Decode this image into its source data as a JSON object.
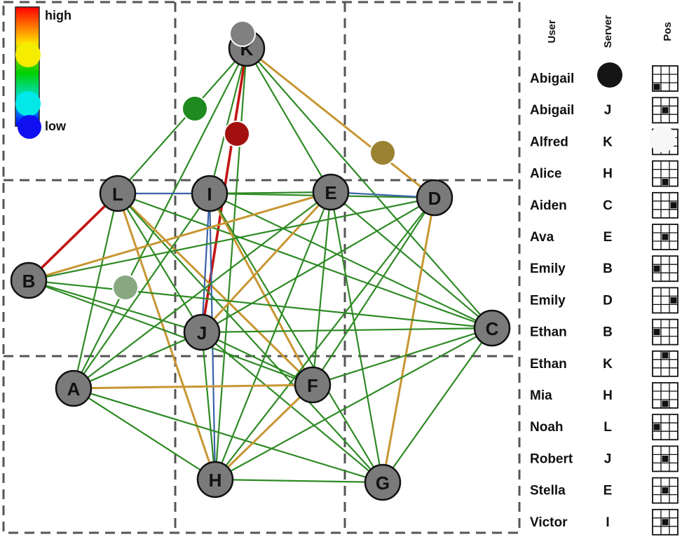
{
  "legend": {
    "high_label": "high",
    "low_label": "low"
  },
  "table_headers": {
    "user": "User",
    "server": "Server",
    "pos": "Pos"
  },
  "nodes": [
    {
      "id": "K",
      "label": "K"
    },
    {
      "id": "L",
      "label": "L"
    },
    {
      "id": "I",
      "label": "I"
    },
    {
      "id": "E",
      "label": "E"
    },
    {
      "id": "D",
      "label": "D"
    },
    {
      "id": "B",
      "label": "B"
    },
    {
      "id": "J",
      "label": "J"
    },
    {
      "id": "C",
      "label": "C"
    },
    {
      "id": "A",
      "label": "A"
    },
    {
      "id": "F",
      "label": "F"
    },
    {
      "id": "H",
      "label": "H"
    },
    {
      "id": "G",
      "label": "G"
    }
  ],
  "edges": [
    {
      "a": "K",
      "b": "L",
      "color": "green"
    },
    {
      "a": "K",
      "b": "I",
      "color": "green"
    },
    {
      "a": "K",
      "b": "E",
      "color": "green"
    },
    {
      "a": "K",
      "b": "D",
      "color": "orange"
    },
    {
      "a": "K",
      "b": "J",
      "color": "red"
    },
    {
      "a": "K",
      "b": "C",
      "color": "green"
    },
    {
      "a": "K",
      "b": "A",
      "color": "green"
    },
    {
      "a": "K",
      "b": "H",
      "color": "green"
    },
    {
      "a": "L",
      "b": "I",
      "color": "blue"
    },
    {
      "a": "L",
      "b": "B",
      "color": "red"
    },
    {
      "a": "L",
      "b": "A",
      "color": "green"
    },
    {
      "a": "L",
      "b": "J",
      "color": "green"
    },
    {
      "a": "L",
      "b": "F",
      "color": "orange"
    },
    {
      "a": "L",
      "b": "H",
      "color": "orange"
    },
    {
      "a": "L",
      "b": "G",
      "color": "green"
    },
    {
      "a": "L",
      "b": "C",
      "color": "green"
    },
    {
      "a": "I",
      "b": "E",
      "color": "green"
    },
    {
      "a": "I",
      "b": "D",
      "color": "green"
    },
    {
      "a": "I",
      "b": "J",
      "color": "blue"
    },
    {
      "a": "I",
      "b": "H",
      "color": "blue"
    },
    {
      "a": "I",
      "b": "F",
      "color": "orange"
    },
    {
      "a": "I",
      "b": "A",
      "color": "green"
    },
    {
      "a": "I",
      "b": "G",
      "color": "green"
    },
    {
      "a": "I",
      "b": "C",
      "color": "green"
    },
    {
      "a": "E",
      "b": "D",
      "color": "blue"
    },
    {
      "a": "E",
      "b": "B",
      "color": "orange"
    },
    {
      "a": "E",
      "b": "J",
      "color": "orange"
    },
    {
      "a": "E",
      "b": "F",
      "color": "green"
    },
    {
      "a": "E",
      "b": "H",
      "color": "green"
    },
    {
      "a": "E",
      "b": "G",
      "color": "green"
    },
    {
      "a": "E",
      "b": "C",
      "color": "green"
    },
    {
      "a": "E",
      "b": "A",
      "color": "green"
    },
    {
      "a": "D",
      "b": "J",
      "color": "green"
    },
    {
      "a": "D",
      "b": "F",
      "color": "green"
    },
    {
      "a": "D",
      "b": "G",
      "color": "orange"
    },
    {
      "a": "D",
      "b": "H",
      "color": "green"
    },
    {
      "a": "D",
      "b": "B",
      "color": "green"
    },
    {
      "a": "B",
      "b": "J",
      "color": "green"
    },
    {
      "a": "B",
      "b": "F",
      "color": "green"
    },
    {
      "a": "B",
      "b": "C",
      "color": "green"
    },
    {
      "a": "J",
      "b": "C",
      "color": "green"
    },
    {
      "a": "J",
      "b": "F",
      "color": "green"
    },
    {
      "a": "J",
      "b": "G",
      "color": "green"
    },
    {
      "a": "J",
      "b": "H",
      "color": "green"
    },
    {
      "a": "J",
      "b": "A",
      "color": "green"
    },
    {
      "a": "A",
      "b": "F",
      "color": "orange"
    },
    {
      "a": "A",
      "b": "H",
      "color": "green"
    },
    {
      "a": "A",
      "b": "G",
      "color": "green"
    },
    {
      "a": "F",
      "b": "H",
      "color": "orange"
    },
    {
      "a": "F",
      "b": "C",
      "color": "green"
    },
    {
      "a": "H",
      "b": "G",
      "color": "green"
    },
    {
      "a": "H",
      "b": "C",
      "color": "green"
    },
    {
      "a": "G",
      "b": "C",
      "color": "green"
    }
  ],
  "markers": [
    {
      "color": "#808080",
      "on": "K"
    },
    {
      "color": "#1f8a1f"
    },
    {
      "color": "#a31010"
    },
    {
      "color": "#9a8232"
    },
    {
      "color": "#88a882"
    }
  ],
  "colors": {
    "green": "#2e8a24",
    "orange": "#c89632",
    "red": "#c41414",
    "blue": "#3a62a8",
    "node_fill": "#7a7a7a",
    "legend_yellow": "#f5ec00",
    "legend_cyan": "#00e8e8",
    "legend_blue": "#1010f0",
    "server_black": "#151515",
    "server_white": "#f7f7f7"
  },
  "users": [
    {
      "user": "Abigail",
      "server": "",
      "server_icon": "black-dot",
      "pos": 6
    },
    {
      "user": "Abigail",
      "server": "J",
      "pos": 4
    },
    {
      "user": "Alfred",
      "server": "K",
      "server_icon": "white-dot",
      "pos": 1
    },
    {
      "user": "Alice",
      "server": "H",
      "pos": 7
    },
    {
      "user": "Aiden",
      "server": "C",
      "pos": 5
    },
    {
      "user": "Ava",
      "server": "E",
      "pos": 4
    },
    {
      "user": "Emily",
      "server": "B",
      "pos": 3
    },
    {
      "user": "Emily",
      "server": "D",
      "pos": 5
    },
    {
      "user": "Ethan",
      "server": "B",
      "pos": 3
    },
    {
      "user": "Ethan",
      "server": "K",
      "pos": 1
    },
    {
      "user": "Mia",
      "server": "H",
      "pos": 7
    },
    {
      "user": "Noah",
      "server": "L",
      "pos": 3
    },
    {
      "user": "Robert",
      "server": "J",
      "pos": 4
    },
    {
      "user": "Stella",
      "server": "E",
      "pos": 4
    },
    {
      "user": "Victor",
      "server": "I",
      "pos": 4
    }
  ]
}
